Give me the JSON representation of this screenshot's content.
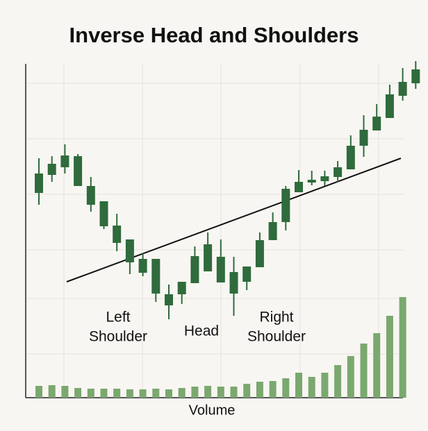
{
  "chart_data": {
    "type": "candlestick",
    "title": "Inverse Head and Shoulders",
    "x_label": "Volume",
    "annotations": [
      [
        "Left",
        "Shoulder"
      ],
      [
        "Head"
      ],
      [
        "Right",
        "Shoulder"
      ]
    ],
    "color": "#2f6b3c",
    "volume_color": "#7aa86f",
    "ylim": [
      0,
      100
    ],
    "volume_ylim": [
      0,
      150
    ],
    "open": [
      50.5,
      57,
      59.75,
      53,
      46.25,
      38.5,
      32.5,
      25.5,
      21.75,
      14.25,
      10,
      14,
      18,
      22.25,
      18.25,
      14.25,
      18.5,
      23.75,
      33.5,
      40,
      50.75,
      54.25,
      54.75,
      56.25,
      59,
      67.5,
      73,
      77.5,
      85.5,
      90
    ],
    "high": [
      63,
      63.75,
      68,
      64.5,
      56.25,
      47.5,
      43,
      33.75,
      28.75,
      26.75,
      17.5,
      18.5,
      31.25,
      36.25,
      33.75,
      27.5,
      24,
      36.25,
      43.5,
      53,
      58.75,
      58.5,
      58.5,
      62,
      71.25,
      78.5,
      82.5,
      89.5,
      95.5,
      98
    ],
    "low": [
      46.25,
      54.5,
      57.5,
      53,
      43.75,
      37.5,
      29.5,
      21.25,
      20.5,
      11.25,
      5,
      10.5,
      18,
      22.25,
      18.25,
      6.25,
      15.5,
      23.75,
      33.5,
      37,
      50.75,
      53.25,
      53,
      54.5,
      59,
      63.5,
      73,
      77.5,
      83.75,
      88
    ],
    "close": [
      57.5,
      61,
      64,
      63.75,
      53,
      47.5,
      38.75,
      33.75,
      26.75,
      26.75,
      14,
      18.5,
      27.75,
      32,
      27.5,
      22,
      24,
      33.5,
      40,
      52,
      54.5,
      55.25,
      56.5,
      59.75,
      67.5,
      73.25,
      78,
      86,
      90.5,
      95
    ],
    "volume": [
      17,
      18,
      17,
      14,
      13,
      13,
      13,
      12,
      12,
      13,
      12,
      14,
      16,
      17,
      16,
      16,
      20,
      23,
      24,
      28,
      36,
      30,
      36,
      47,
      60,
      78,
      93,
      118,
      145,
      null
    ]
  }
}
